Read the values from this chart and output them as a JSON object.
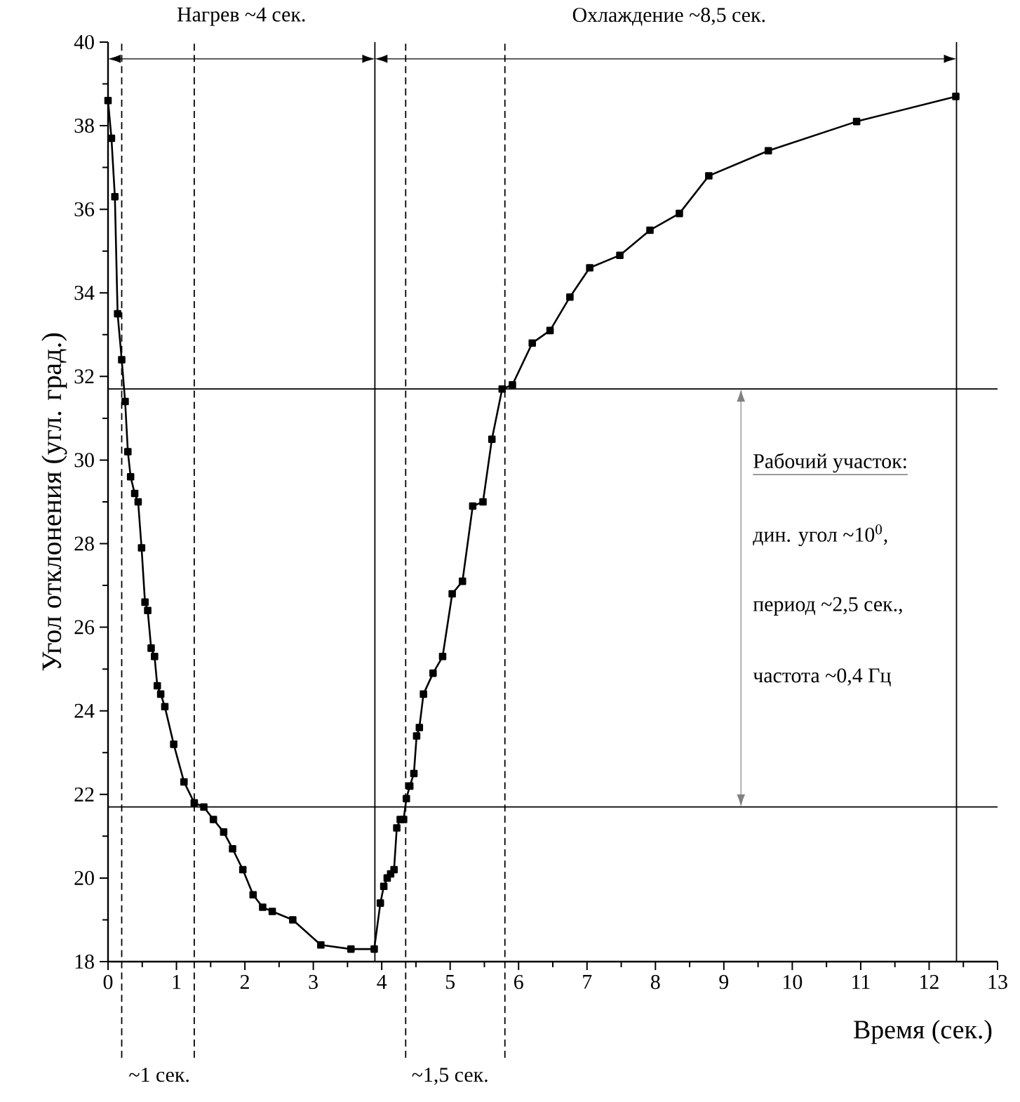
{
  "chart_data": {
    "type": "line",
    "xlabel": "Время (сек.)",
    "ylabel": "Угол отклонения (угл. град.)",
    "xlim": [
      0,
      13
    ],
    "xticks": [
      0,
      1,
      2,
      3,
      4,
      5,
      6,
      7,
      8,
      9,
      10,
      11,
      12,
      13
    ],
    "ylim": [
      18,
      40
    ],
    "yticks": [
      18,
      20,
      22,
      24,
      26,
      28,
      30,
      32,
      34,
      36,
      38,
      40
    ],
    "grid": false,
    "marker": "square",
    "line_style": "solid",
    "series": [
      {
        "color": "#000000",
        "x": [
          0.0,
          0.05,
          0.1,
          0.14,
          0.2,
          0.25,
          0.29,
          0.33,
          0.39,
          0.44,
          0.49,
          0.54,
          0.58,
          0.63,
          0.68,
          0.72,
          0.77,
          0.83,
          0.96,
          1.11,
          1.26,
          1.4,
          1.54,
          1.69,
          1.82,
          1.97,
          2.12,
          2.26,
          2.4,
          2.7,
          3.11,
          3.55,
          3.89,
          3.98,
          4.03,
          4.08,
          4.13,
          4.18,
          4.22,
          4.27,
          4.32,
          4.36,
          4.41,
          4.47,
          4.51,
          4.55,
          4.61,
          4.75,
          4.89,
          5.03,
          5.18,
          5.33,
          5.48,
          5.61,
          5.76,
          5.91,
          6.2,
          6.46,
          6.75,
          7.04,
          7.48,
          7.92,
          8.35,
          8.78,
          9.65,
          10.94,
          12.39
        ],
        "values": [
          38.6,
          37.7,
          36.3,
          33.5,
          32.4,
          31.4,
          30.2,
          29.6,
          29.2,
          29.0,
          27.9,
          26.6,
          26.4,
          25.5,
          25.3,
          24.6,
          24.4,
          24.1,
          23.2,
          22.3,
          21.8,
          21.7,
          21.4,
          21.1,
          20.7,
          20.2,
          19.6,
          19.3,
          19.2,
          19.0,
          18.4,
          18.3,
          18.3,
          19.4,
          19.8,
          20.0,
          20.1,
          20.2,
          21.2,
          21.4,
          21.4,
          21.9,
          22.2,
          22.5,
          23.4,
          23.6,
          24.4,
          24.9,
          25.3,
          26.8,
          27.1,
          28.9,
          29.0,
          30.5,
          31.7,
          31.8,
          32.8,
          33.1,
          33.9,
          34.6,
          34.9,
          35.5,
          35.9,
          36.8,
          37.4,
          38.1,
          38.7
        ]
      }
    ],
    "ref_lines": [
      {
        "axis": "y",
        "value": 31.7,
        "color": "#000000",
        "line_style": "solid"
      },
      {
        "axis": "y",
        "value": 21.7,
        "color": "#000000",
        "line_style": "solid"
      },
      {
        "axis": "x",
        "value": 3.9,
        "color": "#000000",
        "line_style": "solid"
      },
      {
        "axis": "x",
        "value": 12.4,
        "color": "#000000",
        "line_style": "solid"
      },
      {
        "axis": "x",
        "value": 0.2,
        "color": "#000000",
        "line_style": "dashed"
      },
      {
        "axis": "x",
        "value": 1.26,
        "color": "#000000",
        "line_style": "dashed"
      },
      {
        "axis": "x",
        "value": 4.35,
        "color": "#000000",
        "line_style": "dashed"
      },
      {
        "axis": "x",
        "value": 5.8,
        "color": "#000000",
        "line_style": "dashed"
      }
    ],
    "annotations": [
      "Нагрев ~4 сек.",
      "Охлаждение ~8,5 сек.",
      "Рабочий участок:",
      "дин. угол ~10$^{0}$,",
      "период ~2,5 сек.,",
      "частота ~0,4 Гц",
      "~1 сек.",
      "~1,5 сек."
    ]
  }
}
